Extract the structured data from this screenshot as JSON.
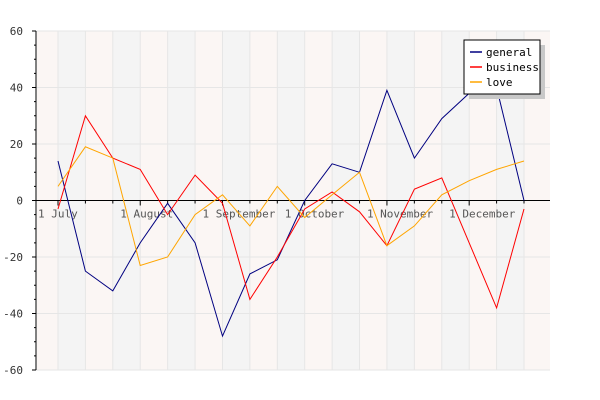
{
  "chart_data": {
    "type": "line",
    "title": "",
    "xlabel": "",
    "ylabel": "",
    "ylim": [
      -60,
      60
    ],
    "yticks": [
      -60,
      -40,
      -20,
      0,
      20,
      40,
      60
    ],
    "grid": true,
    "legend_position": "top-right",
    "x_tick_labels": [
      "1 July",
      "1 August",
      "1 September",
      "1 October",
      "1 November",
      "1 December"
    ],
    "x_count": 18,
    "x_tick_indices": [
      0,
      3,
      6,
      9,
      12,
      15
    ],
    "series": [
      {
        "name": "general",
        "color": "#000080",
        "values": [
          14,
          -25,
          -32,
          -15,
          -1,
          -15,
          -48,
          -26,
          -21,
          0,
          13,
          10,
          39,
          15,
          29,
          38,
          40,
          0
        ]
      },
      {
        "name": "business",
        "color": "#ff0000",
        "values": [
          -3,
          30,
          15,
          11,
          -5,
          9,
          -1,
          -35,
          -20,
          -3,
          3,
          -4,
          -16,
          4,
          8,
          -15,
          -38,
          -3
        ]
      },
      {
        "name": "love",
        "color": "#ffa500",
        "values": [
          5,
          19,
          15,
          -23,
          -20,
          -5,
          2,
          -9,
          5,
          -6,
          2,
          10,
          -16,
          -9,
          2,
          7,
          11,
          14
        ]
      }
    ]
  }
}
